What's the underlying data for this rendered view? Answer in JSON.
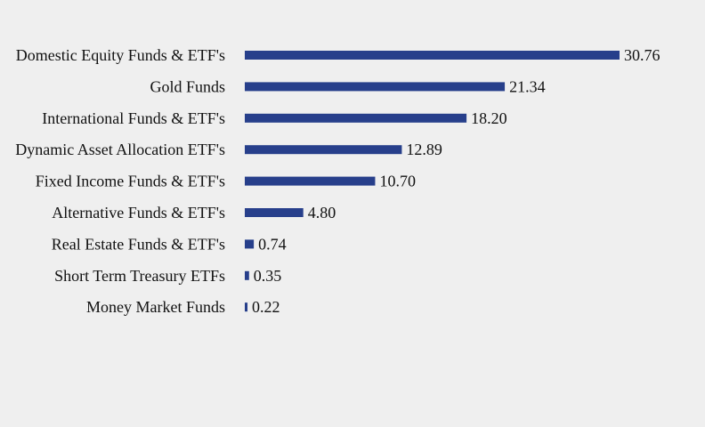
{
  "chart_data": {
    "type": "bar",
    "orientation": "horizontal",
    "title": "",
    "xlabel": "",
    "ylabel": "",
    "grid": false,
    "legend": "none",
    "categories": [
      "Domestic Equity Funds & ETF's",
      "Gold Funds",
      "International Funds & ETF's",
      "Dynamic Asset Allocation ETF's",
      "Fixed Income Funds & ETF's",
      "Alternative Funds & ETF's",
      "Real Estate Funds & ETF's",
      "Short Term Treasury ETFs",
      "Money Market Funds"
    ],
    "values": [
      30.76,
      21.34,
      18.2,
      12.89,
      10.7,
      4.8,
      0.74,
      0.35,
      0.22
    ],
    "value_labels": [
      "30.76",
      "21.34",
      "18.20",
      "12.89",
      "10.70",
      "4.80",
      "0.74",
      "0.35",
      "0.22"
    ],
    "xlim": [
      0,
      30.76
    ],
    "bar_color": "#273f8b",
    "background_color": "#efefef"
  }
}
